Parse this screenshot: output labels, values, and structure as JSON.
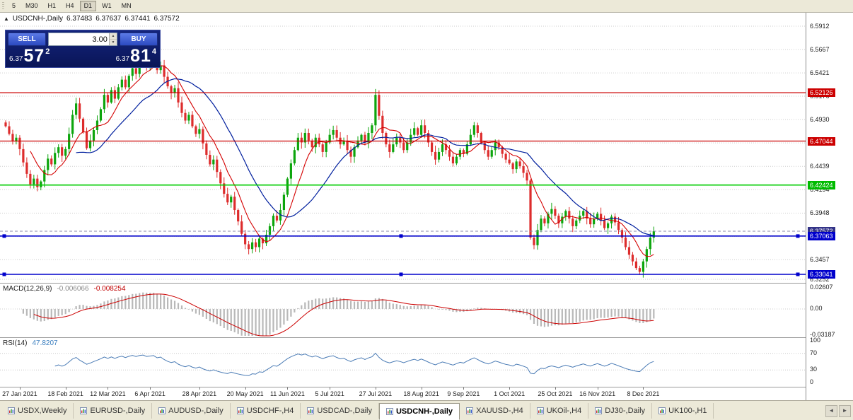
{
  "toolbar": {
    "timeframes": [
      {
        "label": "5",
        "active": false
      },
      {
        "label": "M30",
        "active": false
      },
      {
        "label": "H1",
        "active": false
      },
      {
        "label": "H4",
        "active": false
      },
      {
        "label": "D1",
        "active": true
      },
      {
        "label": "W1",
        "active": false
      },
      {
        "label": "MN",
        "active": false
      }
    ]
  },
  "chart": {
    "header": {
      "collapse_icon": "▲",
      "symbol": "USDCNH-,Daily",
      "open": "6.37483",
      "high": "6.37637",
      "low": "6.37441",
      "close": "6.37572"
    },
    "trade_panel": {
      "sell_label": "SELL",
      "buy_label": "BUY",
      "volume": "3.00",
      "spin_up": "▲",
      "spin_down": "▼",
      "sell_price_small": "6.37",
      "sell_price_big": "57",
      "sell_price_sup": "2",
      "buy_price_small": "6.37",
      "buy_price_big": "81",
      "buy_price_sup": "4"
    },
    "current_price": 6.37572,
    "price_axis": {
      "labels": [
        {
          "text": "6.5912",
          "price": 6.5912
        },
        {
          "text": "6.5667",
          "price": 6.5667
        },
        {
          "text": "6.5421",
          "price": 6.5421
        },
        {
          "text": "6.5176",
          "price": 6.5176
        },
        {
          "text": "6.4930",
          "price": 6.493
        },
        {
          "text": "6.4685",
          "price": 6.4685
        },
        {
          "text": "6.4439",
          "price": 6.4439
        },
        {
          "text": "6.4194",
          "price": 6.4194
        },
        {
          "text": "6.3948",
          "price": 6.3948
        },
        {
          "text": "6.3703",
          "price": 6.3703
        },
        {
          "text": "6.3457",
          "price": 6.3457
        },
        {
          "text": "6.3252",
          "price": 6.3252
        }
      ],
      "badges": [
        {
          "text": "6.52126",
          "price": 6.52126,
          "bg": "#cc0000"
        },
        {
          "text": "6.47044",
          "price": 6.47044,
          "bg": "#cc0000"
        },
        {
          "text": "6.42424",
          "price": 6.42424,
          "bg": "#00bb00"
        },
        {
          "text": "6.37572",
          "price": 6.37572,
          "bg": "#333388"
        },
        {
          "text": "6.37063",
          "price": 6.37063,
          "bg": "#0000cc"
        },
        {
          "text": "6.33041",
          "price": 6.33041,
          "bg": "#0000cc"
        }
      ]
    },
    "hlines": [
      {
        "price": 6.52126,
        "color": "#cc0000",
        "width": 1.3,
        "handles": false
      },
      {
        "price": 6.47044,
        "color": "#cc0000",
        "width": 1.3,
        "handles": false
      },
      {
        "price": 6.42424,
        "color": "#00cc00",
        "width": 1.6,
        "handles": false
      },
      {
        "price": 6.37063,
        "color": "#0000cc",
        "width": 1.6,
        "handles": true
      },
      {
        "price": 6.33041,
        "color": "#0000cc",
        "width": 1.6,
        "handles": true
      }
    ]
  },
  "chart_data": {
    "type": "candlestick",
    "symbol": "USDCNH-",
    "timeframe": "Daily",
    "title": "USDCNH-,Daily",
    "ohlc_current": {
      "open": 6.37483,
      "high": 6.37637,
      "low": 6.37441,
      "close": 6.37572
    },
    "ylim": [
      6.3252,
      6.5912
    ],
    "horizontal_levels": [
      6.52126,
      6.47044,
      6.42424,
      6.37063,
      6.33041
    ],
    "colors": {
      "up": "#0da50d",
      "down": "#dd2c2c",
      "grid": "#cdcdcd",
      "ma_fast": "#d40000",
      "ma_slow": "#001f9e",
      "current_price_line": "#8888aa"
    },
    "moving_averages": [
      {
        "name": "fast",
        "period": 8,
        "color": "#d40000"
      },
      {
        "name": "slow",
        "period": 21,
        "color": "#001f9e"
      }
    ],
    "dates": [
      {
        "label": "27 Jan 2021",
        "index": 4
      },
      {
        "label": "18 Feb 2021",
        "index": 17
      },
      {
        "label": "12 Mar 2021",
        "index": 29
      },
      {
        "label": "6 Apr 2021",
        "index": 41
      },
      {
        "label": "28 Apr 2021",
        "index": 55
      },
      {
        "label": "20 May 2021",
        "index": 68
      },
      {
        "label": "11 Jun 2021",
        "index": 80
      },
      {
        "label": "5 Jul 2021",
        "index": 92
      },
      {
        "label": "27 Jul 2021",
        "index": 105
      },
      {
        "label": "18 Aug 2021",
        "index": 118
      },
      {
        "label": "9 Sep 2021",
        "index": 130
      },
      {
        "label": "1 Oct 2021",
        "index": 143
      },
      {
        "label": "25 Oct 2021",
        "index": 156
      },
      {
        "label": "16 Nov 2021",
        "index": 168
      },
      {
        "label": "8 Dec 2021",
        "index": 181
      }
    ],
    "closes": [
      6.486,
      6.478,
      6.47,
      6.474,
      6.462,
      6.448,
      6.436,
      6.425,
      6.431,
      6.422,
      6.428,
      6.44,
      6.452,
      6.446,
      6.458,
      6.464,
      6.455,
      6.462,
      6.478,
      6.498,
      6.51,
      6.494,
      6.48,
      6.463,
      6.471,
      6.482,
      6.492,
      6.504,
      6.519,
      6.511,
      6.524,
      6.515,
      6.527,
      6.535,
      6.527,
      6.539,
      6.547,
      6.541,
      6.551,
      6.555,
      6.548,
      6.552,
      6.555,
      6.545,
      6.55,
      6.538,
      6.528,
      6.521,
      6.526,
      6.511,
      6.5,
      6.492,
      6.498,
      6.486,
      6.478,
      6.483,
      6.468,
      6.456,
      6.446,
      6.451,
      6.438,
      6.426,
      6.415,
      6.406,
      6.412,
      6.398,
      6.386,
      6.373,
      6.362,
      6.357,
      6.364,
      6.359,
      6.368,
      6.363,
      6.372,
      6.381,
      6.392,
      6.387,
      6.398,
      6.414,
      6.431,
      6.447,
      6.461,
      6.474,
      6.469,
      6.479,
      6.471,
      6.464,
      6.474,
      6.467,
      6.459,
      6.469,
      6.477,
      6.482,
      6.474,
      6.467,
      6.471,
      6.461,
      6.454,
      6.464,
      6.471,
      6.477,
      6.469,
      6.479,
      6.487,
      6.519,
      6.497,
      6.479,
      6.467,
      6.459,
      6.467,
      6.474,
      6.469,
      6.461,
      6.469,
      6.477,
      6.484,
      6.477,
      6.487,
      6.479,
      6.469,
      6.459,
      6.451,
      6.459,
      6.467,
      6.461,
      6.454,
      6.447,
      6.454,
      6.461,
      6.457,
      6.467,
      6.477,
      6.487,
      6.479,
      6.469,
      6.461,
      6.454,
      6.461,
      6.469,
      6.464,
      6.457,
      6.451,
      6.447,
      6.441,
      6.449,
      6.444,
      6.437,
      6.429,
      6.369,
      6.361,
      6.377,
      6.389,
      6.384,
      6.394,
      6.399,
      6.392,
      6.384,
      6.391,
      6.397,
      6.389,
      6.381,
      6.387,
      6.392,
      6.397,
      6.389,
      6.383,
      6.389,
      6.394,
      6.387,
      6.379,
      6.384,
      6.391,
      6.385,
      6.377,
      6.369,
      6.359,
      6.351,
      6.344,
      6.337,
      6.333,
      6.344,
      6.357,
      6.369,
      6.3757
    ]
  },
  "indicators": {
    "macd": {
      "title": "MACD(12,26,9)",
      "value_main": "-0.006066",
      "value_signal": "-0.008254",
      "fast": 12,
      "slow": 26,
      "signal": 9,
      "axis_labels": [
        {
          "text": "0.02607",
          "value": 0.02607
        },
        {
          "text": "0.00",
          "value": 0
        },
        {
          "text": "-0.03187",
          "value": -0.03187
        }
      ],
      "colors": {
        "histogram": "#b8b8b8",
        "signal": "#cc0000"
      }
    },
    "rsi": {
      "title": "RSI(14)",
      "value": "47.8207",
      "period": 14,
      "levels": [
        70,
        30
      ],
      "color": "#4a7bb5",
      "axis_labels": [
        {
          "text": "100",
          "value": 100
        },
        {
          "text": "70",
          "value": 70
        },
        {
          "text": "30",
          "value": 30
        },
        {
          "text": "0",
          "value": 0
        }
      ]
    }
  },
  "tabbar": {
    "scroll_left": "◄",
    "scroll_right": "►",
    "tabs": [
      {
        "label": "USDX,Weekly",
        "active": false
      },
      {
        "label": "EURUSD-,Daily",
        "active": false
      },
      {
        "label": "AUDUSD-,Daily",
        "active": false
      },
      {
        "label": "USDCHF-,H4",
        "active": false
      },
      {
        "label": "USDCAD-,Daily",
        "active": false
      },
      {
        "label": "USDCNH-,Daily",
        "active": true
      },
      {
        "label": "XAUUSD-,H4",
        "active": false
      },
      {
        "label": "UKOil-,H4",
        "active": false
      },
      {
        "label": "DJ30-,Daily",
        "active": false
      },
      {
        "label": "UK100-,H1",
        "active": false
      }
    ]
  }
}
